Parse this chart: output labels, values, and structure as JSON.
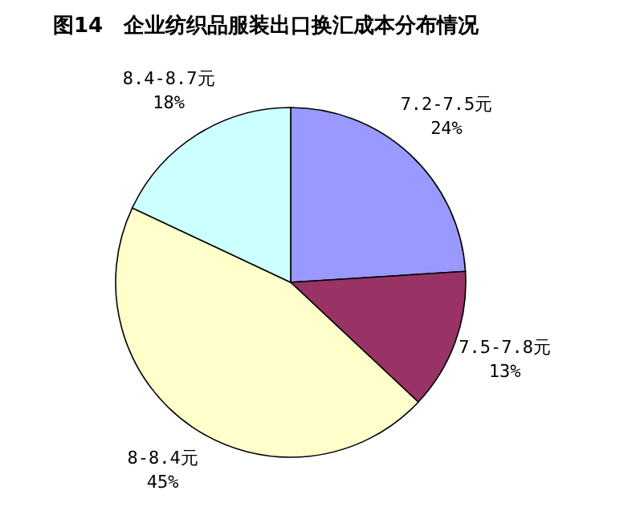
{
  "chart_data": {
    "type": "pie",
    "title": "图14　企业纺织品服装出口换汇成本分布情况",
    "categories": [
      "7.2-7.5元",
      "7.5-7.8元",
      "8-8.4元",
      "8.4-8.7元"
    ],
    "values": [
      24,
      13,
      45,
      18
    ],
    "colors": [
      "#9999ff",
      "#993366",
      "#ffffcc",
      "#ccffff"
    ],
    "value_labels": [
      "24%",
      "13%",
      "45%",
      "18%"
    ]
  }
}
